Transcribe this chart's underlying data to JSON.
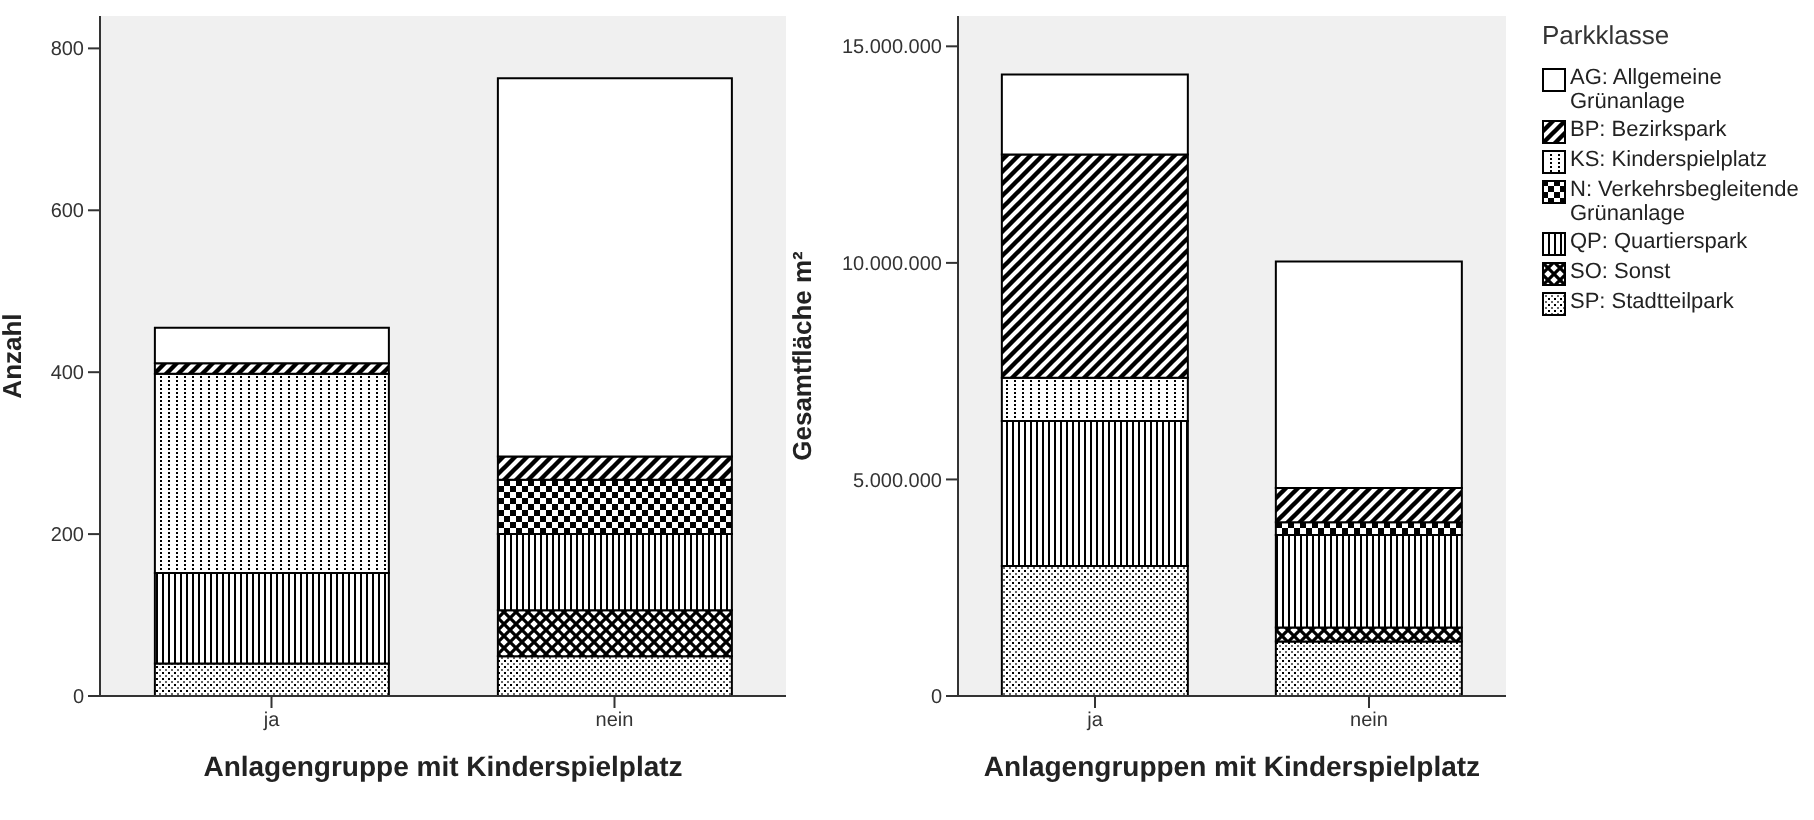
{
  "chart_data": [
    {
      "type": "bar",
      "stacked": true,
      "xlabel": "Anlagengruppe mit Kinderspielplatz",
      "ylabel": "Anzahl",
      "categories": [
        "ja",
        "nein"
      ],
      "ylim": [
        0,
        840
      ],
      "yticks": [
        0,
        200,
        400,
        600,
        800
      ],
      "grid": false,
      "legend": false,
      "series": [
        {
          "color": "#000000",
          "values": [
            40,
            49
          ]
        },
        {
          "color": "#000000",
          "values": [
            0,
            57
          ]
        },
        {
          "color": "#000000",
          "values": [
            112,
            94
          ]
        },
        {
          "color": "#000000",
          "values": [
            0,
            67
          ]
        },
        {
          "color": "#000000",
          "values": [
            246,
            0
          ]
        },
        {
          "color": "#000000",
          "values": [
            13,
            29
          ]
        },
        {
          "color": "#000000",
          "values": [
            44,
            467
          ]
        }
      ]
    },
    {
      "type": "bar",
      "stacked": true,
      "xlabel": "Anlagengruppen mit Kinderspielplatz",
      "ylabel": "Gesamtfläche m²",
      "legend_title": "Parkklasse",
      "legend": "right",
      "categories": [
        "ja",
        "nein"
      ],
      "ylim": [
        0,
        15700000
      ],
      "yticks": [
        {
          "value": 0,
          "label": "0"
        },
        {
          "value": 5000000,
          "label": "5.000.000"
        },
        {
          "value": 10000000,
          "label": "10.000.000"
        },
        {
          "value": 15000000,
          "label": "15.000.000"
        }
      ],
      "grid": false,
      "series": [
        {
          "name": "SP: Stadtteilpark",
          "color": "#000000",
          "values": [
            3000000,
            1260000
          ]
        },
        {
          "name": "SO: Sonst",
          "color": "#000000",
          "values": [
            0,
            320000
          ]
        },
        {
          "name": "QP: Quartierspark",
          "color": "#000000",
          "values": [
            3350000,
            2140000
          ]
        },
        {
          "name": "N: Verkehrsbegleitende Grünanlage",
          "color": "#000000",
          "values": [
            0,
            290000
          ]
        },
        {
          "name": "KS: Kinderspielplatz",
          "color": "#000000",
          "values": [
            1000000,
            0
          ]
        },
        {
          "name": "BP: Bezirkspark",
          "color": "#000000",
          "values": [
            5150000,
            790000
          ]
        },
        {
          "name": "AG: Allgemeine Grünanlage",
          "color": "#000000",
          "values": [
            1850000,
            5230000
          ]
        }
      ]
    }
  ]
}
